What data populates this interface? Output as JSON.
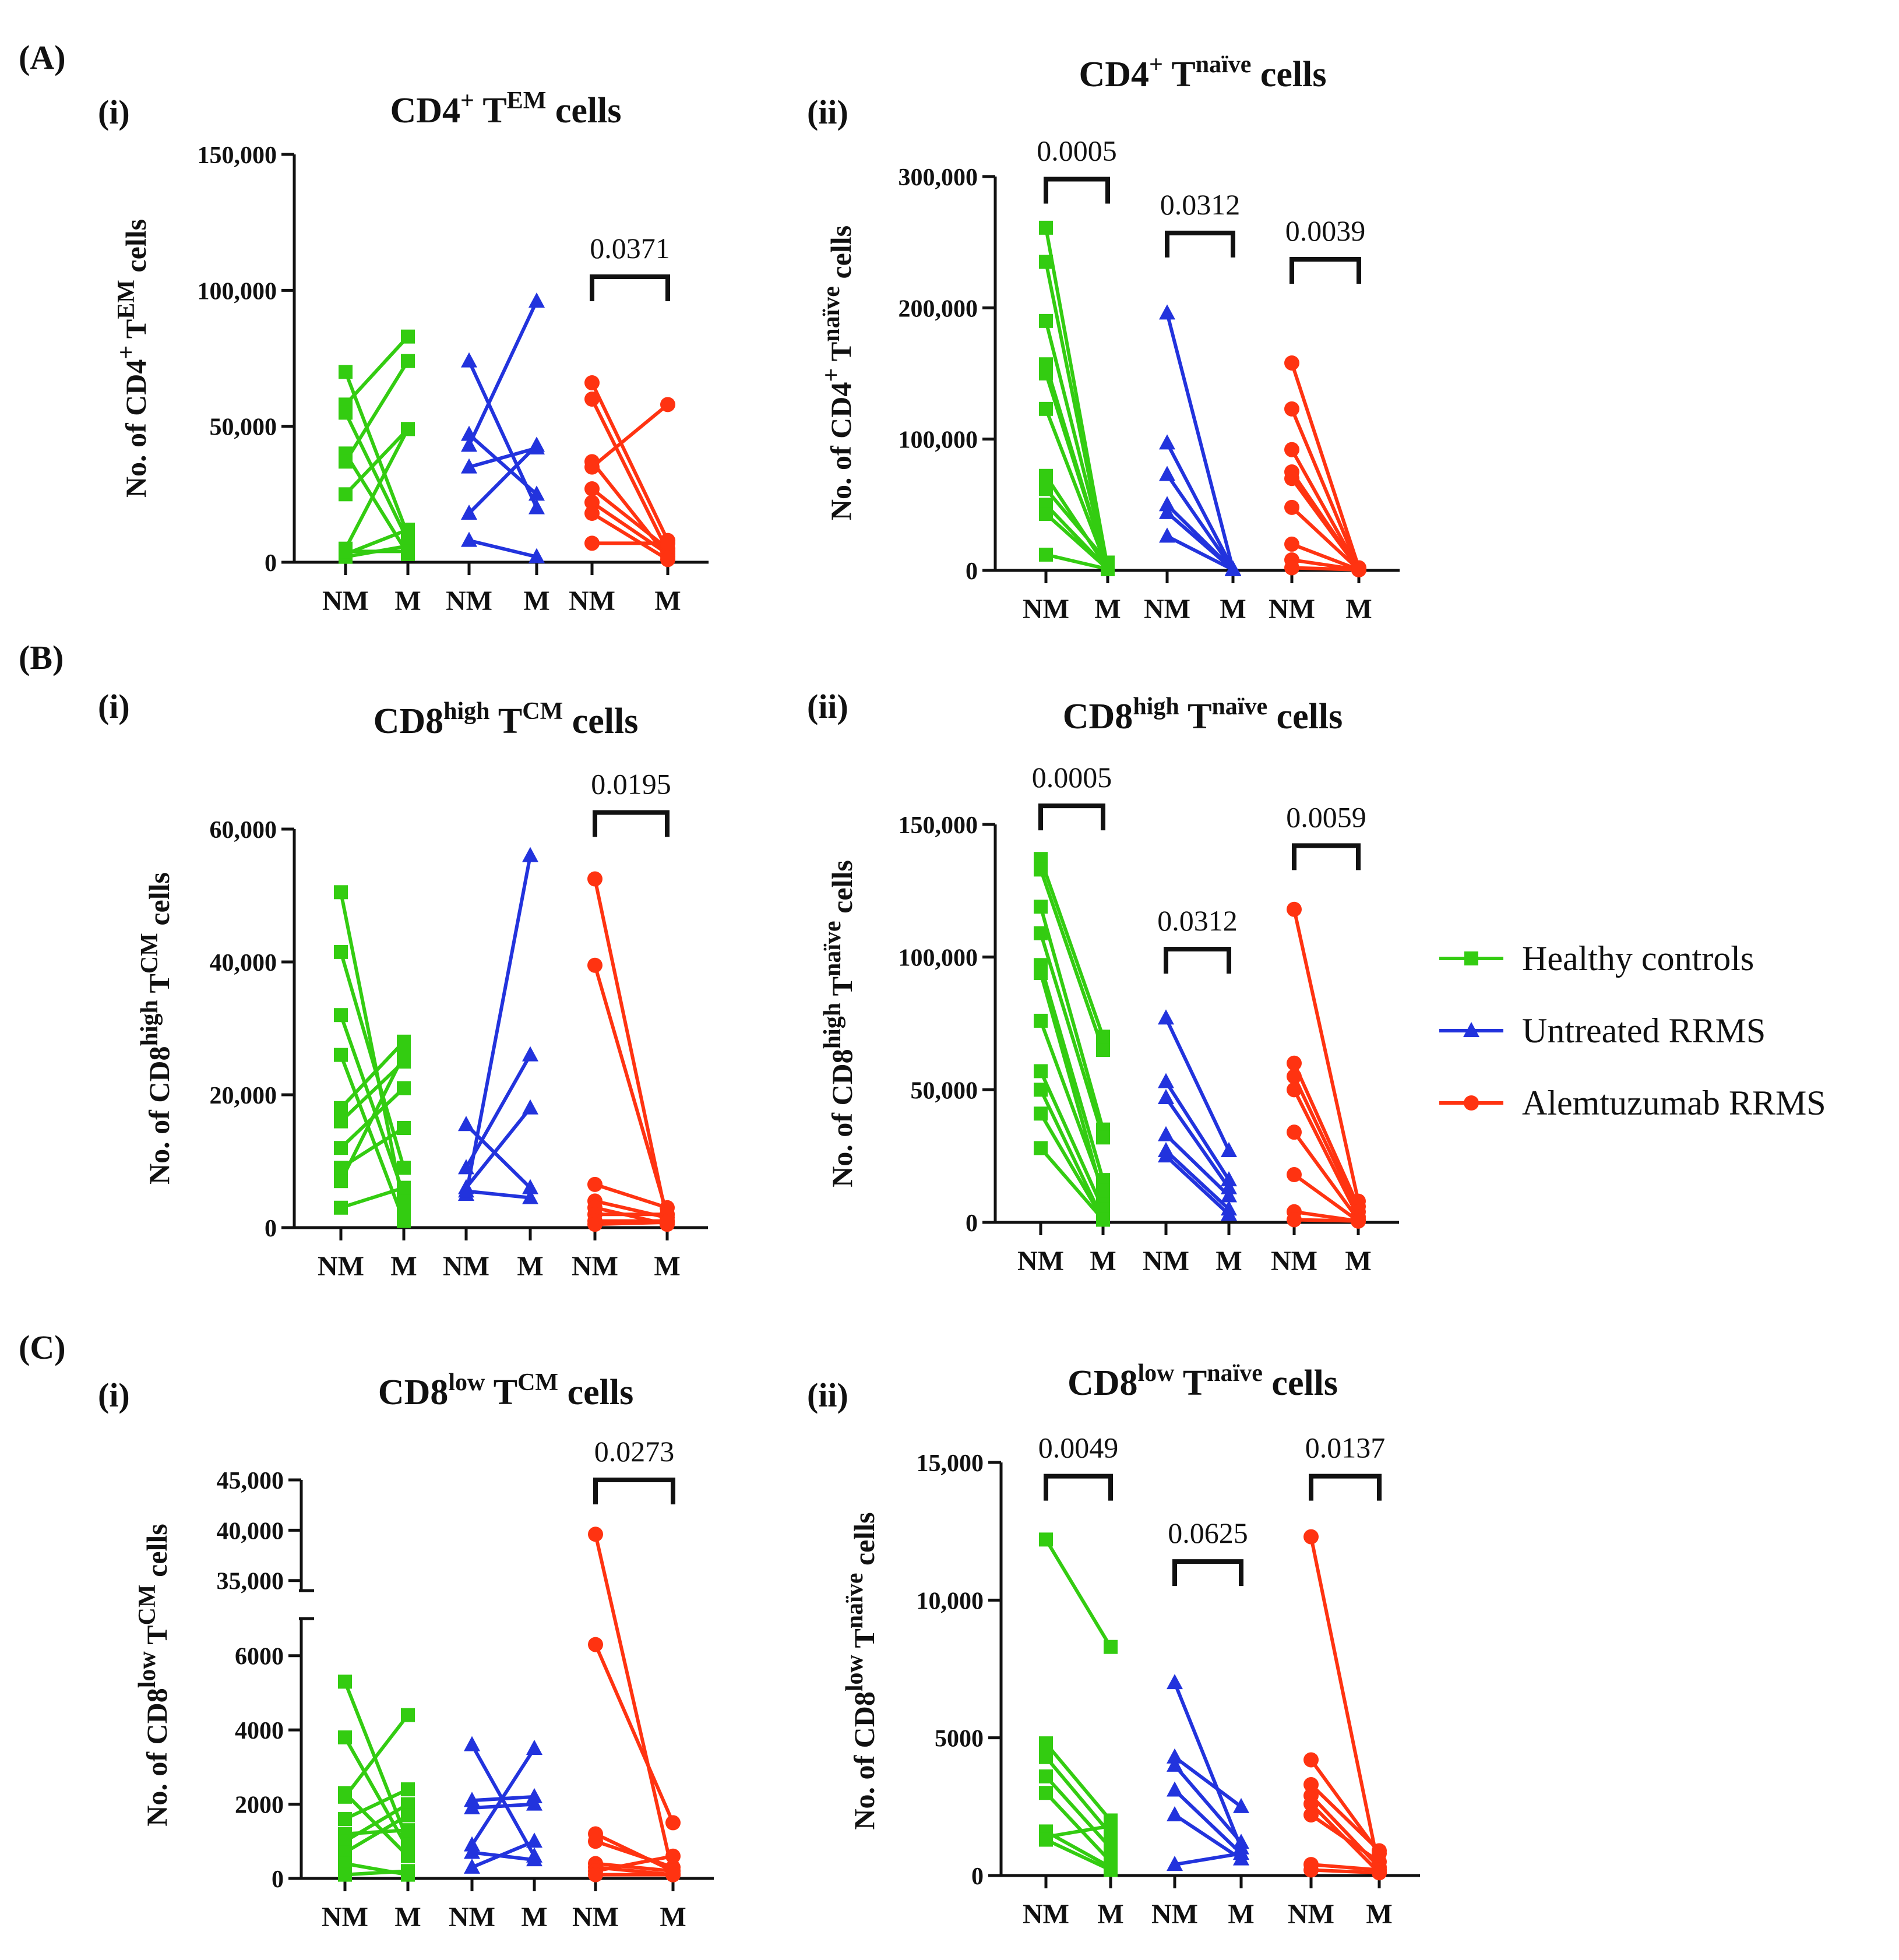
{
  "colors": {
    "healthy": "#33cc11",
    "untreated": "#2233dd",
    "alemtuzumab": "#ff3311"
  },
  "section_labels": [
    "(A)",
    "(B)",
    "(C)"
  ],
  "legend": [
    {
      "label": "Healthy controls",
      "color": "#33cc11",
      "marker": "square"
    },
    {
      "label": "Untreated RRMS",
      "color": "#2233dd",
      "marker": "triangle"
    },
    {
      "label": "Alemtuzumab RRMS",
      "color": "#ff3311",
      "marker": "circle"
    }
  ],
  "chart_data": [
    {
      "type": "line",
      "panel": "(i)",
      "title": {
        "base": "CD4",
        "sup1": "+",
        "mid": " T",
        "sup2": "EM",
        "end": " cells"
      },
      "ylabel": {
        "base": "No. of CD4",
        "sup1": "+",
        "mid": " T",
        "sup2": "EM",
        "end": " cells"
      },
      "ylim": [
        0,
        150000
      ],
      "yticks": [
        {
          "v": 0,
          "label": "0"
        },
        {
          "v": 50000,
          "label": "50,000"
        },
        {
          "v": 100000,
          "label": "100,000"
        },
        {
          "v": 150000,
          "label": "150,000"
        }
      ],
      "categories": [
        "NM",
        "M",
        "NM",
        "M",
        "NM",
        "M"
      ],
      "series": [
        {
          "name": "Healthy controls",
          "pairs": [
            [
              70000,
              10000
            ],
            [
              58000,
              83000
            ],
            [
              55000,
              8000
            ],
            [
              40000,
              3000
            ],
            [
              37000,
              74000
            ],
            [
              25000,
              49000
            ],
            [
              5000,
              49000
            ],
            [
              3000,
              12000
            ],
            [
              2000,
              6000
            ],
            [
              4000,
              4000
            ]
          ]
        },
        {
          "name": "Untreated RRMS",
          "pairs": [
            [
              74000,
              20000
            ],
            [
              47000,
              25000
            ],
            [
              43000,
              96000
            ],
            [
              35000,
              42000
            ],
            [
              18000,
              43000
            ],
            [
              8000,
              2000
            ]
          ]
        },
        {
          "name": "Alemtuzumab RRMS",
          "pairs": [
            [
              66000,
              8000
            ],
            [
              60000,
              4000
            ],
            [
              37000,
              2000
            ],
            [
              35000,
              58000
            ],
            [
              27000,
              5000
            ],
            [
              22000,
              3000
            ],
            [
              18000,
              1000
            ],
            [
              7000,
              7000
            ]
          ]
        }
      ],
      "significance": [
        {
          "group": 2,
          "label": "0.0371",
          "value": 105000
        }
      ]
    },
    {
      "type": "line",
      "panel": "(ii)",
      "title": {
        "base": "CD4",
        "sup1": "+",
        "mid": " T",
        "sup2": "naïve",
        "end": " cells"
      },
      "ylabel": {
        "base": "No. of CD4",
        "sup1": "+",
        "mid": " T",
        "sup2": "naïve",
        "end": " cells"
      },
      "ylim": [
        0,
        300000
      ],
      "yticks": [
        {
          "v": 0,
          "label": "0"
        },
        {
          "v": 100000,
          "label": "100,000"
        },
        {
          "v": 200000,
          "label": "200,000"
        },
        {
          "v": 300000,
          "label": "300,000"
        }
      ],
      "categories": [
        "NM",
        "M",
        "NM",
        "M",
        "NM",
        "M"
      ],
      "series": [
        {
          "name": "Healthy controls",
          "pairs": [
            [
              261000,
              2000
            ],
            [
              235000,
              1000
            ],
            [
              190000,
              3000
            ],
            [
              157000,
              1000
            ],
            [
              150000,
              2000
            ],
            [
              123000,
              1000
            ],
            [
              72000,
              1000
            ],
            [
              62000,
              6000
            ],
            [
              50000,
              1000
            ],
            [
              43000,
              1000
            ],
            [
              12000,
              1000
            ]
          ]
        },
        {
          "name": "Untreated RRMS",
          "pairs": [
            [
              196000,
              1000
            ],
            [
              97000,
              1000
            ],
            [
              73000,
              500
            ],
            [
              50000,
              500
            ],
            [
              44000,
              500
            ],
            [
              26000,
              500
            ]
          ]
        },
        {
          "name": "Alemtuzumab RRMS",
          "pairs": [
            [
              158000,
              2000
            ],
            [
              123000,
              1000
            ],
            [
              92000,
              500
            ],
            [
              75000,
              500
            ],
            [
              70000,
              500
            ],
            [
              48000,
              500
            ],
            [
              20000,
              500
            ],
            [
              8000,
              500
            ],
            [
              2000,
              500
            ]
          ]
        }
      ],
      "significance": [
        {
          "group": 0,
          "label": "0.0005",
          "value": 298000
        },
        {
          "group": 1,
          "label": "0.0312",
          "value": 257000
        },
        {
          "group": 2,
          "label": "0.0039",
          "value": 237000
        }
      ]
    },
    {
      "type": "line",
      "panel": "(i)",
      "title": {
        "base": "CD8",
        "sup1": "high",
        "mid": " T",
        "sup2": "CM",
        "end": " cells"
      },
      "ylabel": {
        "base": "No. of CD8",
        "sup1": "high",
        "mid": " T",
        "sup2": "CM",
        "end": " cells"
      },
      "ylim": [
        0,
        60000
      ],
      "yticks": [
        {
          "v": 0,
          "label": "0"
        },
        {
          "v": 20000,
          "label": "20,000"
        },
        {
          "v": 40000,
          "label": "40,000"
        },
        {
          "v": 60000,
          "label": "60,000"
        }
      ],
      "categories": [
        "NM",
        "M",
        "NM",
        "M",
        "NM",
        "M"
      ],
      "series": [
        {
          "name": "Healthy controls",
          "pairs": [
            [
              50500,
              3000
            ],
            [
              41500,
              9000
            ],
            [
              32000,
              5000
            ],
            [
              26000,
              1000
            ],
            [
              18000,
              28000
            ],
            [
              16000,
              25000
            ],
            [
              12000,
              21000
            ],
            [
              9000,
              15000
            ],
            [
              7000,
              26000
            ],
            [
              3000,
              6000
            ]
          ]
        },
        {
          "name": "Untreated RRMS",
          "pairs": [
            [
              15500,
              6000
            ],
            [
              9000,
              26000
            ],
            [
              6000,
              18000
            ],
            [
              5000,
              56000
            ],
            [
              5500,
              4500
            ]
          ]
        },
        {
          "name": "Alemtuzumab RRMS",
          "pairs": [
            [
              52500,
              1000
            ],
            [
              39500,
              2000
            ],
            [
              6500,
              3000
            ],
            [
              4000,
              1500
            ],
            [
              3000,
              500
            ],
            [
              2000,
              2000
            ],
            [
              1000,
              1000
            ],
            [
              500,
              800
            ]
          ]
        }
      ],
      "significance": [
        {
          "group": 2,
          "label": "0.0195",
          "value": 62500
        }
      ]
    },
    {
      "type": "line",
      "panel": "(ii)",
      "title": {
        "base": "CD8",
        "sup1": "high",
        "mid": " T",
        "sup2": "naïve",
        "end": " cells"
      },
      "ylabel": {
        "base": "No. of CD8",
        "sup1": "high",
        "mid": " T",
        "sup2": "naïve",
        "end": " cells"
      },
      "ylim": [
        0,
        150000
      ],
      "yticks": [
        {
          "v": 0,
          "label": "0"
        },
        {
          "v": 50000,
          "label": "50,000"
        },
        {
          "v": 100000,
          "label": "100,000"
        },
        {
          "v": 150000,
          "label": "150,000"
        }
      ],
      "categories": [
        "NM",
        "M",
        "NM",
        "M",
        "NM",
        "M"
      ],
      "series": [
        {
          "name": "Healthy controls",
          "pairs": [
            [
              137000,
              70000
            ],
            [
              133000,
              65000
            ],
            [
              119000,
              35000
            ],
            [
              109000,
              32000
            ],
            [
              97000,
              16000
            ],
            [
              94000,
              10000
            ],
            [
              76000,
              12000
            ],
            [
              57000,
              5000
            ],
            [
              50000,
              1000
            ],
            [
              41000,
              1000
            ],
            [
              28000,
              1000
            ]
          ]
        },
        {
          "name": "Untreated RRMS",
          "pairs": [
            [
              77000,
              27000
            ],
            [
              53000,
              16000
            ],
            [
              47000,
              13000
            ],
            [
              33000,
              10000
            ],
            [
              27000,
              5000
            ],
            [
              25000,
              3000
            ]
          ]
        },
        {
          "name": "Alemtuzumab RRMS",
          "pairs": [
            [
              118000,
              8000
            ],
            [
              60000,
              6000
            ],
            [
              55000,
              4000
            ],
            [
              50000,
              2000
            ],
            [
              34000,
              1000
            ],
            [
              18000,
              500
            ],
            [
              4000,
              500
            ],
            [
              1000,
              500
            ]
          ]
        }
      ],
      "significance": [
        {
          "group": 0,
          "label": "0.0005",
          "value": 157000
        },
        {
          "group": 1,
          "label": "0.0312",
          "value": 103000
        },
        {
          "group": 2,
          "label": "0.0059",
          "value": 142000
        }
      ]
    },
    {
      "type": "line",
      "panel": "(i)",
      "broken_axis": true,
      "title": {
        "base": "CD8",
        "sup1": "low",
        "mid": " T",
        "sup2": "CM",
        "end": " cells"
      },
      "ylabel": {
        "base": "No. of CD8",
        "sup1": "low",
        "mid": " T",
        "sup2": "CM",
        "end": " cells"
      },
      "ylim": [
        0,
        45000
      ],
      "yticks": [
        {
          "v": 0,
          "label": "0"
        },
        {
          "v": 2000,
          "label": "2000"
        },
        {
          "v": 4000,
          "label": "4000"
        },
        {
          "v": 6000,
          "label": "6000"
        },
        {
          "v": 35000,
          "label": "35,000"
        },
        {
          "v": 40000,
          "label": "40,000"
        },
        {
          "v": 45000,
          "label": "45,000"
        }
      ],
      "categories": [
        "NM",
        "M",
        "NM",
        "M",
        "NM",
        "M"
      ],
      "series": [
        {
          "name": "Healthy controls",
          "pairs": [
            [
              5300,
              1000
            ],
            [
              3800,
              800
            ],
            [
              2300,
              600
            ],
            [
              2200,
              4400
            ],
            [
              1600,
              2400
            ],
            [
              1200,
              1300
            ],
            [
              1000,
              2000
            ],
            [
              700,
              1700
            ],
            [
              400,
              100
            ],
            [
              100,
              200
            ]
          ]
        },
        {
          "name": "Untreated RRMS",
          "pairs": [
            [
              3600,
              600
            ],
            [
              2100,
              2200
            ],
            [
              1900,
              2000
            ],
            [
              900,
              3500
            ],
            [
              700,
              500
            ],
            [
              300,
              1000
            ]
          ]
        },
        {
          "name": "Alemtuzumab RRMS",
          "pairs": [
            [
              39600,
              100
            ],
            [
              6300,
              1500
            ],
            [
              1200,
              200
            ],
            [
              1000,
              300
            ],
            [
              400,
              200
            ],
            [
              300,
              100
            ],
            [
              200,
              600
            ],
            [
              100,
              100
            ]
          ]
        }
      ],
      "significance": [
        {
          "group": 2,
          "label": "0.0273",
          "value": 45000
        }
      ]
    },
    {
      "type": "line",
      "panel": "(ii)",
      "title": {
        "base": "CD8",
        "sup1": "low",
        "mid": " T",
        "sup2": "naïve",
        "end": " cells"
      },
      "ylabel": {
        "base": "No. of CD8",
        "sup1": "low",
        "mid": " T",
        "sup2": "naïve",
        "end": " cells"
      },
      "ylim": [
        0,
        15000
      ],
      "yticks": [
        {
          "v": 0,
          "label": "0"
        },
        {
          "v": 5000,
          "label": "5000"
        },
        {
          "v": 10000,
          "label": "10,000"
        },
        {
          "v": 15000,
          "label": "15,000"
        }
      ],
      "categories": [
        "NM",
        "M",
        "NM",
        "M",
        "NM",
        "M"
      ],
      "series": [
        {
          "name": "Healthy controls",
          "pairs": [
            [
              12200,
              8300
            ],
            [
              4800,
              2000
            ],
            [
              4300,
              1500
            ],
            [
              3600,
              1000
            ],
            [
              3000,
              500
            ],
            [
              1600,
              300
            ],
            [
              1400,
              1800
            ],
            [
              1300,
              200
            ]
          ]
        },
        {
          "name": "Untreated RRMS",
          "pairs": [
            [
              7000,
              1000
            ],
            [
              4300,
              2500
            ],
            [
              4000,
              1200
            ],
            [
              3100,
              800
            ],
            [
              2200,
              600
            ],
            [
              400,
              800
            ]
          ]
        },
        {
          "name": "Alemtuzumab RRMS",
          "pairs": [
            [
              12300,
              200
            ],
            [
              4200,
              800
            ],
            [
              3300,
              900
            ],
            [
              2900,
              300
            ],
            [
              2600,
              100
            ],
            [
              2200,
              500
            ],
            [
              400,
              200
            ],
            [
              200,
              100
            ]
          ]
        }
      ],
      "significance": [
        {
          "group": 0,
          "label": "0.0049",
          "value": 14500
        },
        {
          "group": 1,
          "label": "0.0625",
          "value": 11400
        },
        {
          "group": 2,
          "label": "0.0137",
          "value": 14500
        }
      ]
    }
  ]
}
